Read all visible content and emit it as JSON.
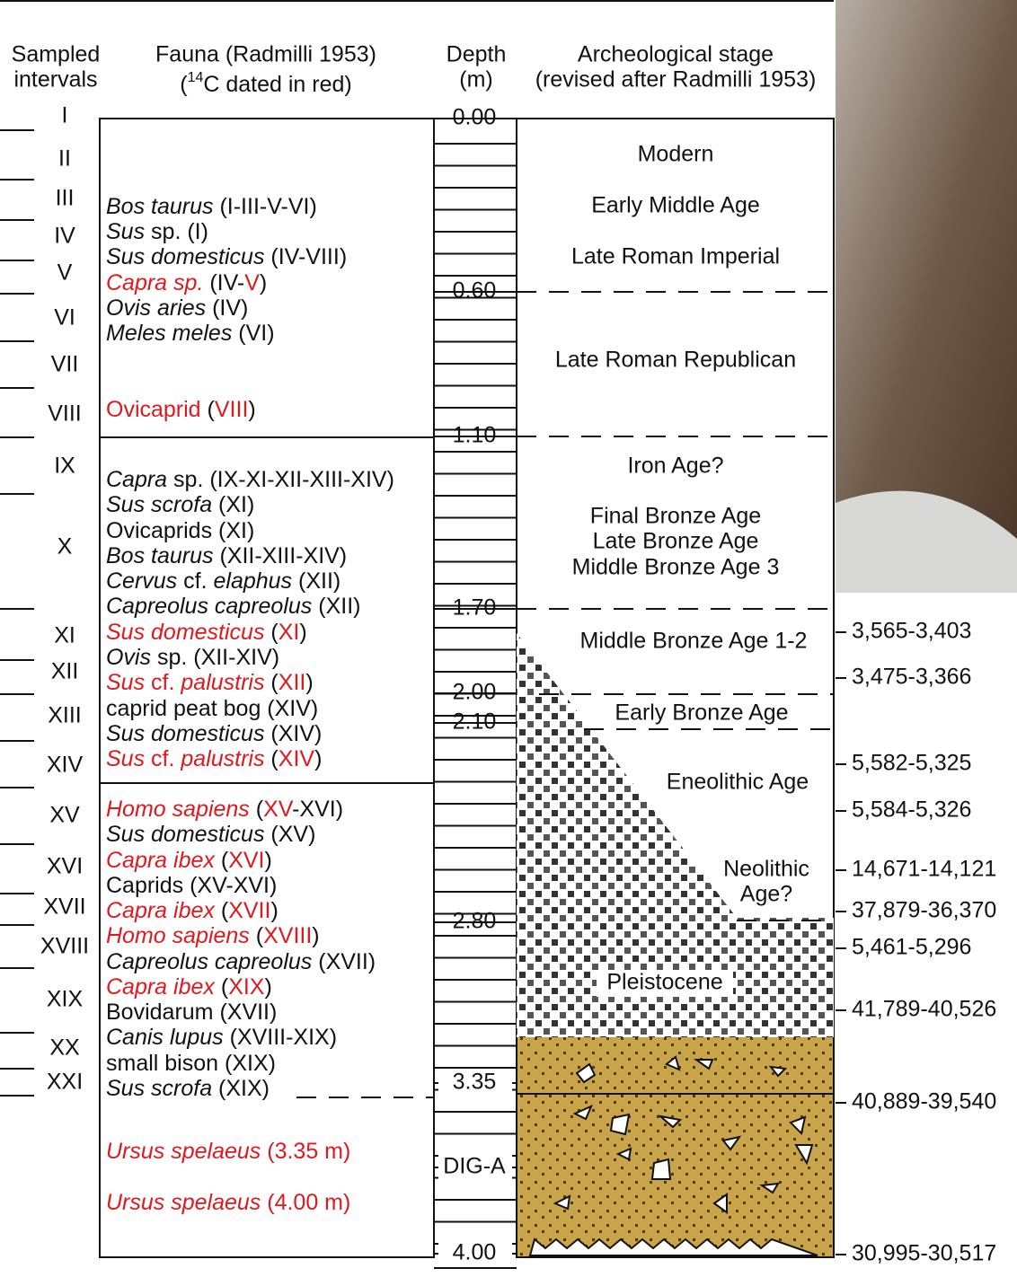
{
  "header": {
    "sampled": [
      "Sampled",
      "intervals"
    ],
    "fauna": {
      "line1": "Fauna (Radmilli 1953)",
      "line2": [
        "(",
        "14",
        "C dated in red)"
      ]
    },
    "depth": [
      "Depth",
      "(m)"
    ],
    "stage": [
      "Archeological stage",
      "(revised after Radmilli 1953)"
    ]
  },
  "intervals": [
    "I",
    "II",
    "III",
    "IV",
    "V",
    "VI",
    "VII",
    "VIII",
    "IX",
    "X",
    "XI",
    "XII",
    "XIII",
    "XIV",
    "XV",
    "XVI",
    "XVII",
    "XVIII",
    "XIX",
    "XX",
    "XXI"
  ],
  "fauna": [
    [
      {
        "text": "Bos taurus",
        "italic": true
      },
      {
        "text": " (I-III-V-VI)"
      }
    ],
    [
      {
        "text": "Sus",
        "italic": true
      },
      {
        "text": " sp. (I)"
      }
    ],
    [
      {
        "text": "Sus domesticus",
        "italic": true
      },
      {
        "text": " (IV-VIII)"
      }
    ],
    [
      {
        "text": "Capra sp.",
        "italic": true,
        "red": true
      },
      {
        "text": " (IV-"
      },
      {
        "text": "V",
        "red": true
      },
      {
        "text": ")"
      }
    ],
    [
      {
        "text": "Ovis aries",
        "italic": true
      },
      {
        "text": " (IV)"
      }
    ],
    [
      {
        "text": "Meles meles",
        "italic": true
      },
      {
        "text": " (VI)"
      }
    ],
    [
      {
        "text": "Ovicaprid",
        "red": true
      },
      {
        "text": " ("
      },
      {
        "text": "VIII",
        "red": true
      },
      {
        "text": ")"
      }
    ],
    [
      {
        "text": "Capra",
        "italic": true
      },
      {
        "text": " sp. (IX-XI-XII-XIII-XIV)"
      }
    ],
    [
      {
        "text": "Sus scrofa",
        "italic": true
      },
      {
        "text": " (XI)"
      }
    ],
    [
      {
        "text": "Ovicaprids (XI)"
      }
    ],
    [
      {
        "text": "Bos taurus",
        "italic": true
      },
      {
        "text": " (XII-XIII-XIV)"
      }
    ],
    [
      {
        "text": "Cervus",
        "italic": true
      },
      {
        "text": " cf. "
      },
      {
        "text": "elaphus",
        "italic": true
      },
      {
        "text": " (XII)"
      }
    ],
    [
      {
        "text": "Capreolus capreolus",
        "italic": true
      },
      {
        "text": " (XII)"
      }
    ],
    [
      {
        "text": "Sus domesticus",
        "italic": true,
        "red": true
      },
      {
        "text": " ("
      },
      {
        "text": "XI",
        "red": true
      },
      {
        "text": ")"
      }
    ],
    [
      {
        "text": "Ovis",
        "italic": true
      },
      {
        "text": " sp. (XII-XIV)"
      }
    ],
    [
      {
        "text": "Sus",
        "italic": true,
        "red": true
      },
      {
        "text": " cf. ",
        "red": true
      },
      {
        "text": "palustris",
        "italic": true,
        "red": true
      },
      {
        "text": " ("
      },
      {
        "text": "XII",
        "red": true
      },
      {
        "text": ")"
      }
    ],
    [
      {
        "text": "caprid peat bog (XIV)"
      }
    ],
    [
      {
        "text": "Sus domesticus",
        "italic": true
      },
      {
        "text": " (XIV)"
      }
    ],
    [
      {
        "text": "Sus",
        "italic": true,
        "red": true
      },
      {
        "text": " cf. ",
        "red": true
      },
      {
        "text": "palustris",
        "italic": true,
        "red": true
      },
      {
        "text": " ("
      },
      {
        "text": "XIV",
        "red": true
      },
      {
        "text": ")"
      }
    ],
    [
      {
        "text": "Homo sapiens",
        "italic": true,
        "red": true
      },
      {
        "text": " ("
      },
      {
        "text": "XV",
        "red": true
      },
      {
        "text": "-XVI)"
      }
    ],
    [
      {
        "text": "Sus domesticus",
        "italic": true
      },
      {
        "text": " (XV)"
      }
    ],
    [
      {
        "text": "Capra ibex",
        "italic": true,
        "red": true
      },
      {
        "text": " ("
      },
      {
        "text": "XVI",
        "red": true
      },
      {
        "text": ")"
      }
    ],
    [
      {
        "text": "Caprids (XV-XVI)"
      }
    ],
    [
      {
        "text": "Capra ibex",
        "italic": true,
        "red": true
      },
      {
        "text": " ("
      },
      {
        "text": "XVII",
        "red": true
      },
      {
        "text": ")"
      }
    ],
    [
      {
        "text": "Homo sapiens",
        "italic": true,
        "red": true
      },
      {
        "text": " ("
      },
      {
        "text": "XVIII",
        "red": true
      },
      {
        "text": ")"
      }
    ],
    [
      {
        "text": "Capreolus capreolus",
        "italic": true
      },
      {
        "text": " (XVII)"
      }
    ],
    [
      {
        "text": "Capra ibex",
        "italic": true,
        "red": true
      },
      {
        "text": " ("
      },
      {
        "text": "XIX",
        "red": true
      },
      {
        "text": ")"
      }
    ],
    [
      {
        "text": "Bovidarum (XVII)"
      }
    ],
    [
      {
        "text": "Canis lupus",
        "italic": true
      },
      {
        "text": " (XVIII-XIX)"
      }
    ],
    [
      {
        "text": "small bison (XIX)"
      }
    ],
    [
      {
        "text": "Sus scrofa",
        "italic": true
      },
      {
        "text": " (XIX)"
      }
    ],
    [
      {
        "text": "Ursus spelaeus",
        "italic": true,
        "red": true
      },
      {
        "text": " (3.35 m)",
        "red": true
      }
    ],
    [
      {
        "text": "Ursus spelaeus",
        "italic": true,
        "red": true
      },
      {
        "text": " (4.00 m)",
        "red": true
      }
    ]
  ],
  "depths": [
    "0.00",
    "0.60",
    "1.10",
    "1.70",
    "2.00",
    "2.10",
    "2.80",
    "3.35",
    "DIG-A",
    "4.00"
  ],
  "stages": [
    "Modern",
    "Early Middle Age",
    "Late Roman Imperial",
    "Late Roman Republican",
    "Iron Age?",
    "Final Bronze Age",
    "Late Bronze Age",
    "Middle Bronze Age 3",
    "Middle Bronze Age 1-2",
    "Early Bronze Age",
    "Eneolithic Age",
    "Neolithic",
    "Age?",
    "Pleistocene"
  ],
  "dates": [
    "3,565-3,403",
    "3,475-3,366",
    "5,582-5,325",
    "5,584-5,326",
    "14,671-14,121",
    "37,879-36,370",
    "5,461-5,296",
    "41,789-40,526",
    "40,889-39,540",
    "30,995-30,517"
  ]
}
